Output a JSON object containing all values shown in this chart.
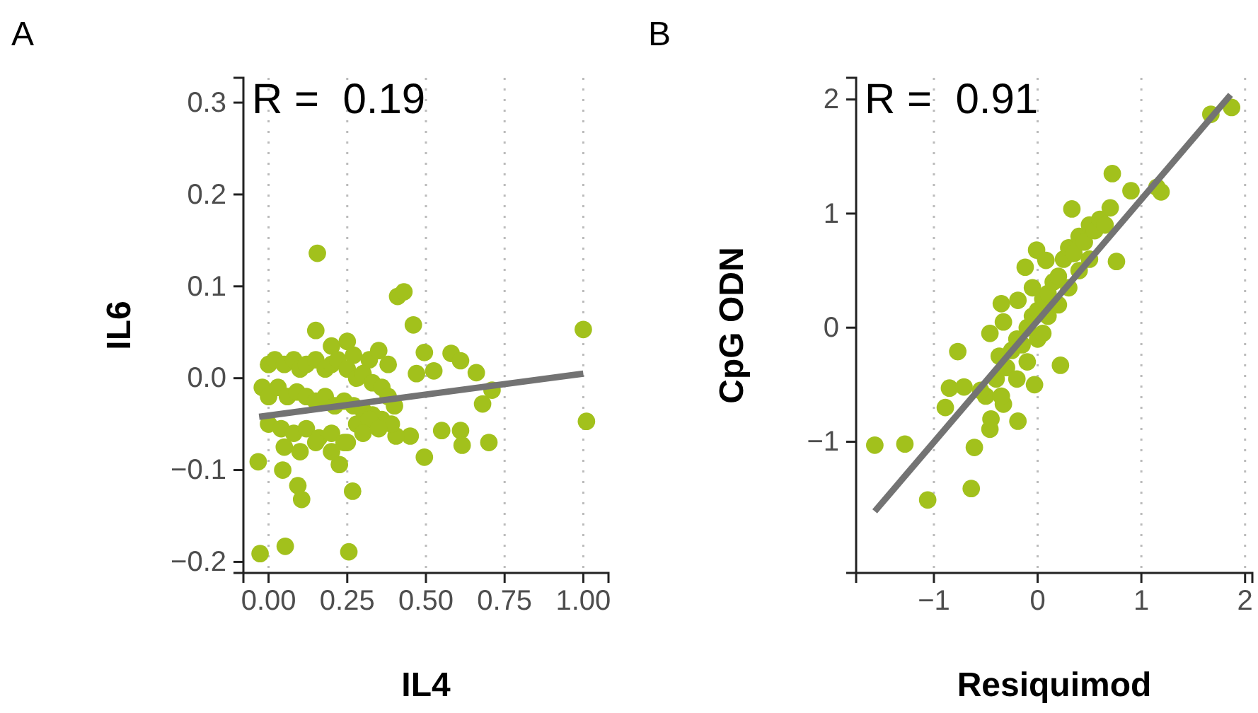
{
  "chart_data": [
    {
      "type": "scatter",
      "title": "A",
      "xlabel": "IL4",
      "ylabel": "IL6",
      "annotations": [
        "R =  0.19"
      ],
      "grid": "x",
      "xlim": [
        -0.08,
        1.08
      ],
      "ylim": [
        -0.212,
        0.327
      ],
      "xticks": [
        {
          "value": 0,
          "label": "0.00"
        },
        {
          "value": 0.25,
          "label": "0.25"
        },
        {
          "value": 0.5,
          "label": "0.50"
        },
        {
          "value": 0.75,
          "label": "0.75"
        },
        {
          "value": 1,
          "label": "1.00"
        }
      ],
      "yticks": [
        {
          "value": -0.2,
          "label": "−0.2"
        },
        {
          "value": -0.1,
          "label": "−0.1"
        },
        {
          "value": 0,
          "label": "0.0"
        },
        0.1,
        0.2,
        0.3
      ],
      "series": [
        {
          "marker": "circle",
          "color": "#a2c11c",
          "x": [
            0.155,
            0.41,
            0.43,
            0.46,
            1.0,
            1.01,
            0.15,
            0.495,
            0.58,
            0.61,
            0.66,
            0.71,
            0.68,
            0.47,
            0.525,
            0.55,
            0.61,
            0.615,
            0.7,
            0.495,
            0.45,
            0.405,
            -0.033,
            0.045,
            0.093,
            0.105,
            0.267,
            0.225,
            -0.027,
            0.053,
            0.255,
            0.2,
            0.25,
            0.27,
            0.32,
            0.35,
            0.38,
            0.0,
            0.02,
            0.05,
            0.08,
            0.1,
            0.12,
            0.15,
            0.18,
            0.2,
            0.22,
            0.25,
            0.28,
            0.3,
            0.33,
            0.36,
            0.38,
            0.4,
            -0.02,
            0.0,
            0.03,
            0.06,
            0.09,
            0.12,
            0.15,
            0.18,
            0.21,
            0.24,
            0.27,
            0.3,
            0.33,
            0.36,
            0.39,
            0.0,
            0.04,
            0.08,
            0.12,
            0.16,
            0.2,
            0.24,
            0.28,
            0.32,
            0.05,
            0.1,
            0.15,
            0.2,
            0.25,
            0.3,
            0.35
          ],
          "values": [
            0.136,
            0.089,
            0.094,
            0.058,
            0.053,
            -0.047,
            0.052,
            0.028,
            0.027,
            0.019,
            0.006,
            -0.013,
            -0.028,
            0.005,
            0.008,
            -0.057,
            -0.057,
            -0.073,
            -0.07,
            -0.086,
            -0.063,
            -0.063,
            -0.091,
            -0.1,
            -0.117,
            -0.132,
            -0.123,
            -0.094,
            -0.191,
            -0.183,
            -0.189,
            0.035,
            0.04,
            0.025,
            0.02,
            0.03,
            0.015,
            0.015,
            0.02,
            0.015,
            0.02,
            0.01,
            0.015,
            0.02,
            0.01,
            0.015,
            0.02,
            0.01,
            0.0,
            0.005,
            -0.005,
            -0.01,
            -0.02,
            -0.03,
            -0.01,
            -0.02,
            -0.01,
            -0.02,
            -0.015,
            -0.02,
            -0.025,
            -0.02,
            -0.03,
            -0.025,
            -0.03,
            -0.035,
            -0.04,
            -0.045,
            -0.05,
            -0.05,
            -0.055,
            -0.06,
            -0.055,
            -0.065,
            -0.06,
            -0.07,
            -0.05,
            -0.045,
            -0.075,
            -0.08,
            -0.07,
            -0.08,
            -0.07,
            -0.06,
            -0.055
          ]
        },
        {
          "type": "line",
          "color": "#737373",
          "x": [
            -0.03,
            1.0
          ],
          "values": [
            -0.042,
            0.005
          ]
        }
      ]
    },
    {
      "type": "scatter",
      "title": "B",
      "xlabel": "Resiquimod",
      "ylabel": "CpG ODN",
      "annotations": [
        "R =  0.91"
      ],
      "grid": "x",
      "xlim": [
        -1.75,
        2.07
      ],
      "ylim": [
        -2.15,
        2.19
      ],
      "xticks": [
        {
          "value": -1,
          "label": "−1"
        },
        0,
        1,
        2
      ],
      "yticks": [
        {
          "value": -1,
          "label": "−1"
        },
        0,
        1,
        2
      ],
      "series": [
        {
          "marker": "circle",
          "color": "#a2c11c",
          "x": [
            -1.57,
            -1.28,
            -1.06,
            -0.64,
            -0.77,
            -0.61,
            -0.46,
            -0.85,
            -0.89,
            -0.71,
            -0.33,
            -0.19,
            -0.03,
            -0.37,
            -0.46,
            -0.33,
            -0.35,
            -0.19,
            0.22,
            -0.12,
            -0.01,
            0.08,
            0.33,
            0.72,
            0.9,
            1.15,
            1.19,
            0.76,
            1.67,
            1.87,
            -0.5,
            -0.4,
            -0.3,
            -0.25,
            -0.2,
            -0.15,
            -0.1,
            -0.05,
            0.0,
            0.05,
            0.1,
            0.1,
            0.15,
            0.2,
            0.2,
            0.25,
            0.3,
            0.35,
            0.4,
            0.45,
            0.5,
            0.55,
            0.6,
            0.65,
            0.7,
            0.5,
            0.4,
            0.3,
            0.0,
            -0.1,
            -0.2,
            -0.35,
            -0.45,
            -0.55,
            0.05,
            -0.05
          ],
          "values": [
            -1.03,
            -1.02,
            -1.51,
            -1.41,
            -0.21,
            -1.05,
            -0.89,
            -0.53,
            -0.7,
            -0.52,
            -0.67,
            -0.82,
            -0.5,
            -0.25,
            -0.05,
            0.05,
            0.21,
            0.24,
            -0.33,
            0.53,
            0.68,
            0.59,
            1.04,
            1.35,
            1.2,
            1.23,
            1.19,
            0.58,
            1.87,
            1.93,
            -0.6,
            -0.45,
            -0.35,
            -0.2,
            -0.1,
            -0.15,
            0.0,
            0.1,
            0.15,
            0.25,
            0.3,
            0.1,
            0.4,
            0.45,
            0.2,
            0.6,
            0.7,
            0.65,
            0.8,
            0.75,
            0.9,
            0.85,
            0.95,
            0.9,
            1.05,
            0.6,
            0.5,
            0.35,
            -0.1,
            -0.3,
            -0.45,
            -0.6,
            -0.8,
            -0.55,
            -0.05,
            0.35
          ]
        },
        {
          "type": "line",
          "color": "#737373",
          "x": [
            -1.57,
            1.86
          ],
          "values": [
            -1.61,
            2.04
          ]
        }
      ]
    }
  ]
}
